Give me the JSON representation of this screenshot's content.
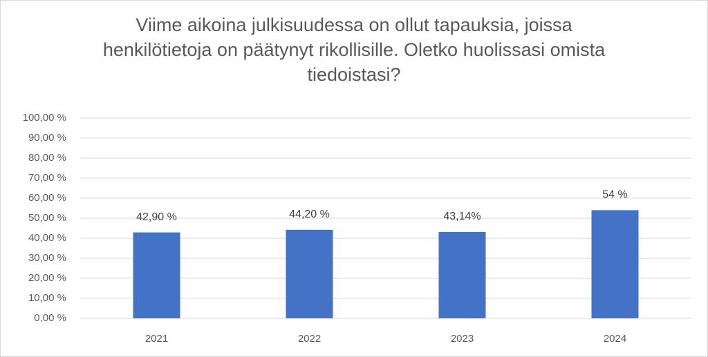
{
  "chart_data": {
    "type": "bar",
    "title": "Viime aikoina julkisuudessa on ollut tapauksia, joissa henkilötietoja on päätynyt rikollisille. Oletko huolissasi omista tiedoistasi?",
    "categories": [
      "2021",
      "2022",
      "2023",
      "2024"
    ],
    "values": [
      42.9,
      44.2,
      43.14,
      54
    ],
    "value_labels": [
      "42,90 %",
      "44,20 %",
      "43,14%",
      "54 %"
    ],
    "color": "#4472c4",
    "ylim": [
      0,
      100
    ],
    "yticks": [
      {
        "value": 0,
        "label": "0,00 %"
      },
      {
        "value": 10,
        "label": "10,00 %"
      },
      {
        "value": 20,
        "label": "20,00 %"
      },
      {
        "value": 30,
        "label": "30,00 %"
      },
      {
        "value": 40,
        "label": "40,00 %"
      },
      {
        "value": 50,
        "label": "50,00 %"
      },
      {
        "value": 60,
        "label": "60,00 %"
      },
      {
        "value": 70,
        "label": "70,00 %"
      },
      {
        "value": 80,
        "label": "80,00 %"
      },
      {
        "value": 90,
        "label": "90,00 %"
      },
      {
        "value": 100,
        "label": "100,00 %"
      }
    ],
    "grid": true
  }
}
